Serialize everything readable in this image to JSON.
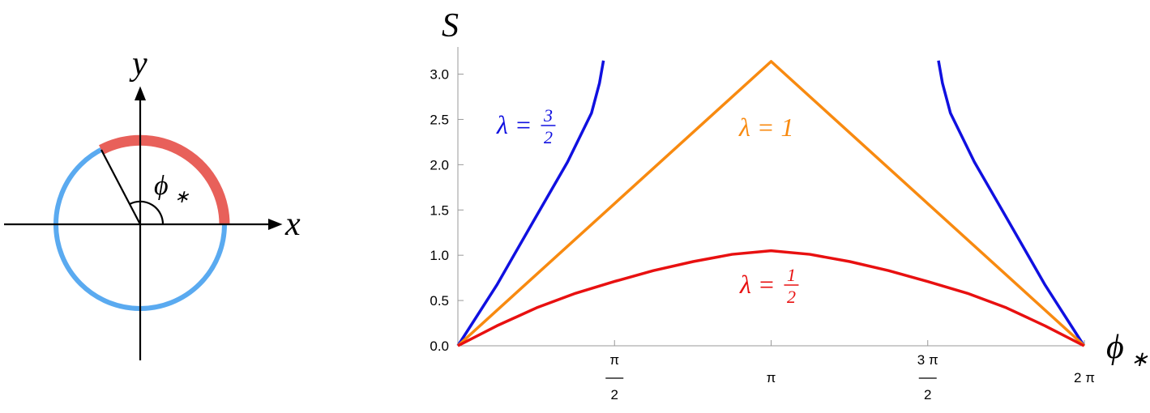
{
  "diagram": {
    "x_label": "x",
    "y_label": "y",
    "angle_label": "ϕ",
    "angle_label_sub": "∗"
  },
  "chart_data": {
    "type": "line",
    "y_label": "S",
    "x_label": "ϕ",
    "x_label_sub": "∗",
    "xlim": [
      0,
      6.2832
    ],
    "ylim": [
      0,
      3.3
    ],
    "xticks": [
      {
        "value": 1.5708,
        "label": "π",
        "denominator": "2"
      },
      {
        "value": 3.1416,
        "label": "π"
      },
      {
        "value": 4.7124,
        "label": "3 π",
        "denominator": "2"
      },
      {
        "value": 6.2832,
        "label": "2 π"
      }
    ],
    "yticks": [
      {
        "value": 0,
        "label": "0.0"
      },
      {
        "value": 0.5,
        "label": "0.5"
      },
      {
        "value": 1,
        "label": "1.0"
      },
      {
        "value": 1.5,
        "label": "1.5"
      },
      {
        "value": 2,
        "label": "2.0"
      },
      {
        "value": 2.5,
        "label": "2.5"
      },
      {
        "value": 3,
        "label": "3.0"
      }
    ],
    "series": [
      {
        "label": "λ =",
        "label_num": "3",
        "label_den": "2",
        "color": "#1010e0",
        "x": [
          0,
          0.39,
          0.77,
          1.1,
          1.34,
          1.42,
          1.46,
          3.14,
          4.82,
          4.86,
          4.94,
          5.18,
          5.51,
          5.89,
          6.28
        ],
        "values": [
          0,
          0.67,
          1.4,
          2.03,
          2.57,
          2.9,
          3.15,
          null,
          3.15,
          2.9,
          2.57,
          2.03,
          1.4,
          0.67,
          0
        ]
      },
      {
        "label": "λ = 1",
        "color": "#f88a10",
        "x": [
          0,
          3.1416,
          6.2832
        ],
        "values": [
          0,
          3.14,
          0
        ]
      },
      {
        "label": "λ =",
        "label_num": "1",
        "label_den": "2",
        "color": "#e81010",
        "x": [
          0,
          0.39,
          0.79,
          1.18,
          1.57,
          1.96,
          2.36,
          2.75,
          3.14,
          3.53,
          3.93,
          4.32,
          4.71,
          5.11,
          5.5,
          5.89,
          6.28
        ],
        "values": [
          0,
          0.22,
          0.42,
          0.58,
          0.71,
          0.83,
          0.93,
          1.01,
          1.05,
          1.01,
          0.93,
          0.83,
          0.71,
          0.58,
          0.42,
          0.22,
          0
        ]
      }
    ]
  }
}
